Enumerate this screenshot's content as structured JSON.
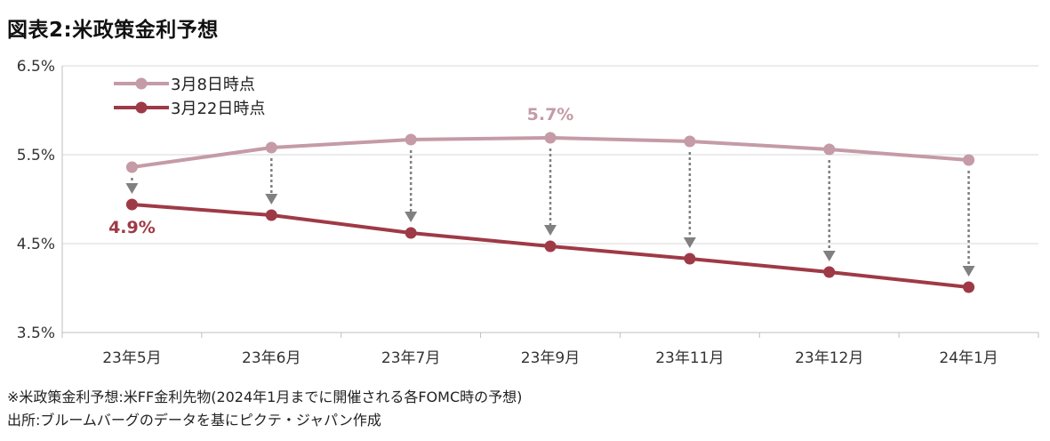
{
  "title": "図表2:米政策金利予想",
  "chart_data": {
    "type": "line",
    "categories": [
      "23年5月",
      "23年6月",
      "23年7月",
      "23年9月",
      "23年11月",
      "23年12月",
      "24年1月"
    ],
    "series": [
      {
        "name": "3月8日時点",
        "color": "#c49ba6",
        "values": [
          5.36,
          5.58,
          5.67,
          5.69,
          5.65,
          5.56,
          5.44
        ]
      },
      {
        "name": "3月22日時点",
        "color": "#9e3a46",
        "values": [
          4.94,
          4.82,
          4.62,
          4.47,
          4.33,
          4.18,
          4.01
        ]
      }
    ],
    "ylim": [
      3.5,
      6.5
    ],
    "yticks": [
      "3.5%",
      "4.5%",
      "5.5%",
      "6.5%"
    ],
    "ytick_values": [
      3.5,
      4.5,
      5.5,
      6.5
    ],
    "grid": true,
    "legend": "top-left",
    "annotations": [
      {
        "text": "5.7%",
        "series": 0,
        "category_index": 3,
        "color": "#c49ba6"
      },
      {
        "text": "4.9%",
        "series": 1,
        "category_index": 0,
        "color": "#9e3a46"
      }
    ],
    "arrow_color": "#808080"
  },
  "notes": {
    "line1": "※米政策金利予想:米FF金利先物(2024年1月までに開催される各FOMC時の予想)",
    "line2": "出所:ブルームバーグのデータを基にピクテ・ジャパン作成"
  }
}
